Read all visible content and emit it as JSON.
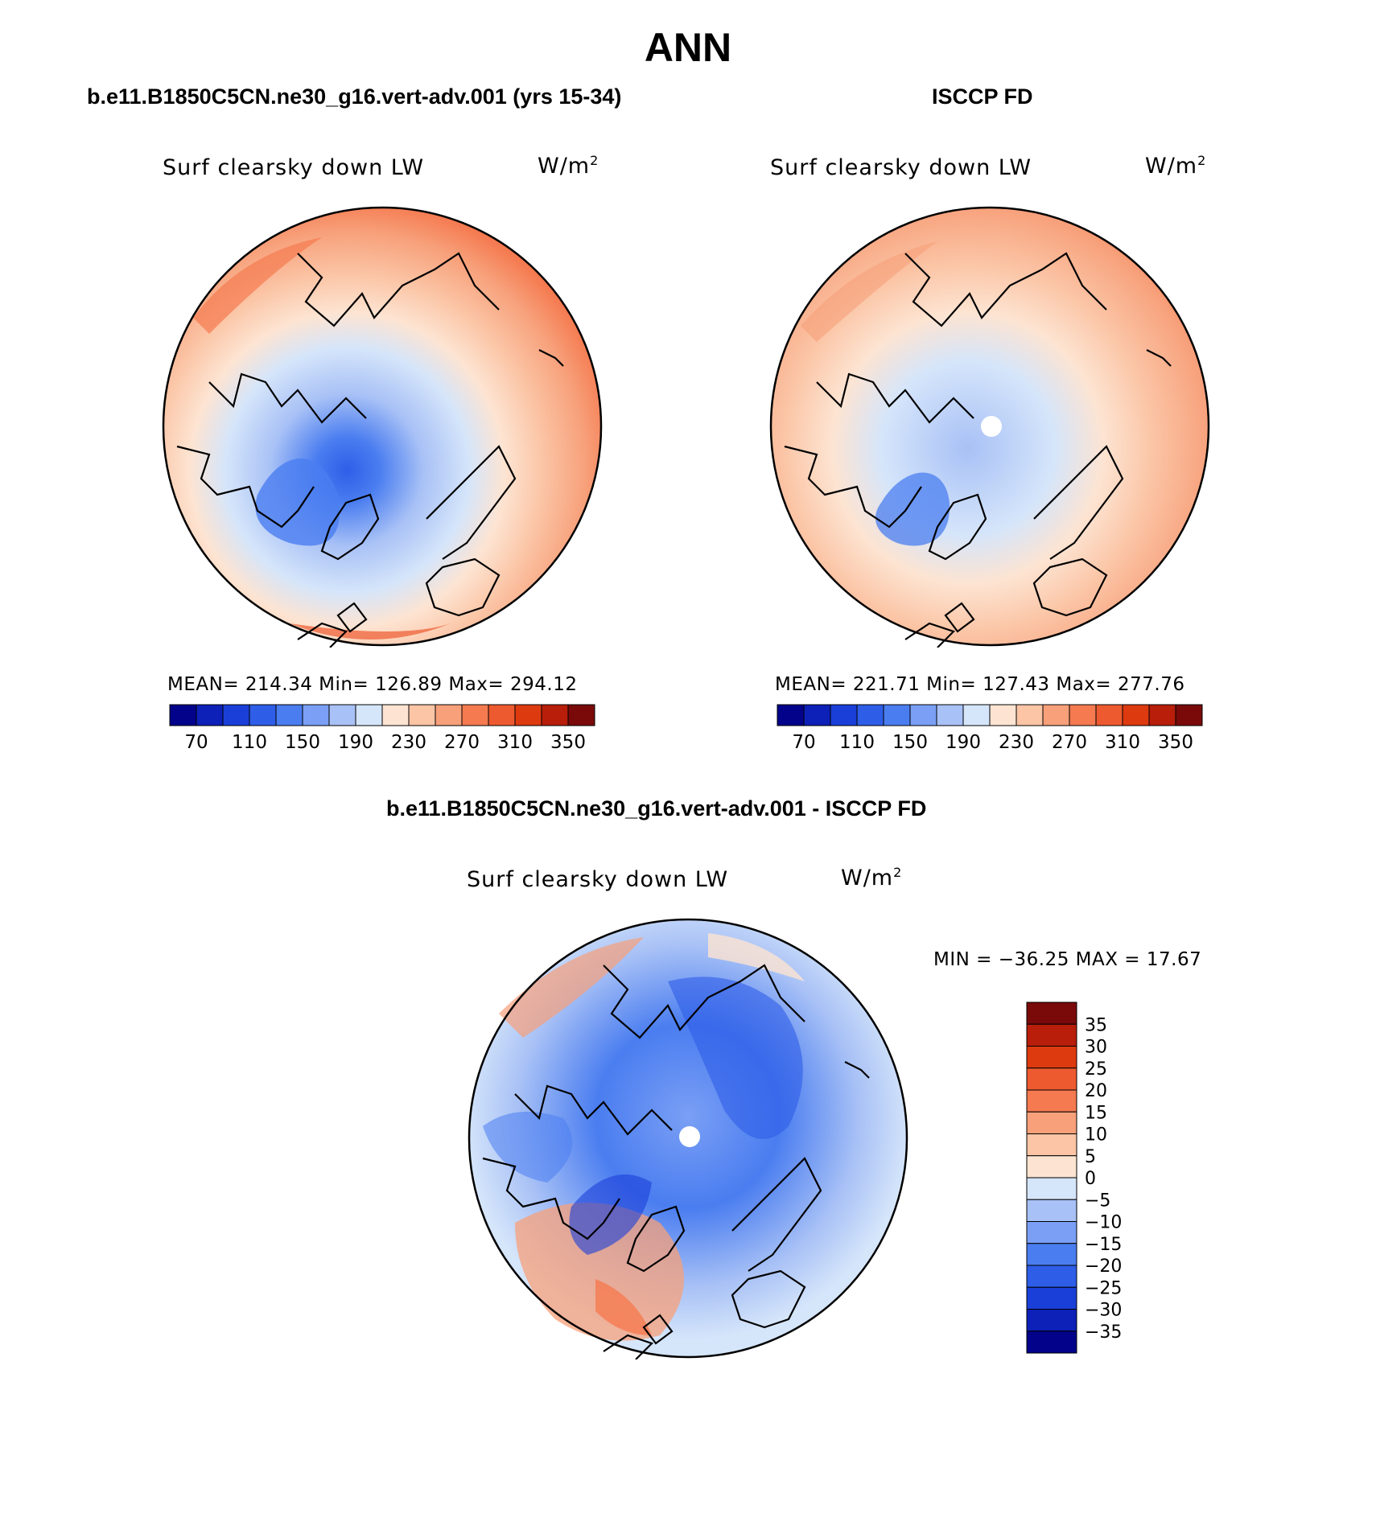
{
  "figure": {
    "title": "ANN"
  },
  "panels": [
    {
      "title": "b.e11.B1850C5CN.ne30_g16.vert-adv.001 (yrs 15-34)",
      "variable": "Surf clearsky down LW",
      "units": "W/m",
      "units_exp": "2",
      "stats": "MEAN= 214.34   Min= 126.89   Max= 294.12",
      "colorbar_ticks": [
        "70",
        "110",
        "150",
        "190",
        "230",
        "270",
        "310",
        "350"
      ],
      "colorbar_colors": [
        "#02028a",
        "#0d20b8",
        "#1a3fd8",
        "#2e5ee8",
        "#4a7df0",
        "#7a9ff5",
        "#a8c1f6",
        "#d5e5fa",
        "#fde4d2",
        "#fbc5a6",
        "#f7a07a",
        "#f57a50",
        "#ee5a30",
        "#de3a10",
        "#b81e0a",
        "#7a0a0a"
      ]
    },
    {
      "title": "ISCCP FD",
      "variable": "Surf clearsky down LW",
      "units": "W/m",
      "units_exp": "2",
      "stats": "MEAN= 221.71   Min= 127.43   Max= 277.76",
      "colorbar_ticks": [
        "70",
        "110",
        "150",
        "190",
        "230",
        "270",
        "310",
        "350"
      ],
      "colorbar_colors": [
        "#02028a",
        "#0d20b8",
        "#1a3fd8",
        "#2e5ee8",
        "#4a7df0",
        "#7a9ff5",
        "#a8c1f6",
        "#d5e5fa",
        "#fde4d2",
        "#fbc5a6",
        "#f7a07a",
        "#f57a50",
        "#ee5a30",
        "#de3a10",
        "#b81e0a",
        "#7a0a0a"
      ]
    },
    {
      "title": "b.e11.B1850C5CN.ne30_g16.vert-adv.001 - ISCCP FD",
      "variable": "Surf clearsky down LW",
      "units": "W/m",
      "units_exp": "2",
      "stats": "MIN = −36.25 MAX =   17.67",
      "colorbar_ticks": [
        "35",
        "30",
        "25",
        "20",
        "15",
        "10",
        "5",
        "0",
        "−5",
        "−10",
        "−15",
        "−20",
        "−25",
        "−30",
        "−35"
      ],
      "colorbar_colors": [
        "#7a0a0a",
        "#b81e0a",
        "#de3a10",
        "#ee5a30",
        "#f57a50",
        "#f7a07a",
        "#fbc5a6",
        "#fde4d2",
        "#d5e5fa",
        "#a8c1f6",
        "#7a9ff5",
        "#4a7df0",
        "#2e5ee8",
        "#1a3fd8",
        "#0d20b8",
        "#02028a"
      ]
    }
  ],
  "colors": {
    "coastline": "#000000",
    "warm": "#f7a07a",
    "cool": "#a8c1f6"
  }
}
